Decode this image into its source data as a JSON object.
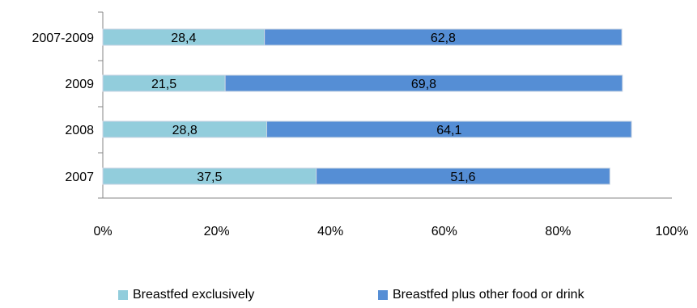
{
  "chart_data": {
    "type": "bar",
    "orientation": "horizontal",
    "stacked": true,
    "categories": [
      "2007-2009",
      "2009",
      "2008",
      "2007"
    ],
    "series": [
      {
        "name": "Breastfed exclusively",
        "values": [
          28.4,
          21.5,
          28.8,
          37.5
        ],
        "labels": [
          "28,4",
          "21,5",
          "28,8",
          "37,5"
        ],
        "color": "#92cddc"
      },
      {
        "name": "Breastfed plus other food or drink",
        "values": [
          62.8,
          69.8,
          64.1,
          51.6
        ],
        "labels": [
          "62,8",
          "69,8",
          "64,1",
          "51,6"
        ],
        "color": "#558ed5"
      }
    ],
    "xlim": [
      0,
      100
    ],
    "xticks": [
      "0%",
      "20%",
      "40%",
      "60%",
      "80%",
      "100%"
    ],
    "grid": false,
    "legend_position": "bottom",
    "title": "",
    "xlabel": "",
    "ylabel": ""
  }
}
